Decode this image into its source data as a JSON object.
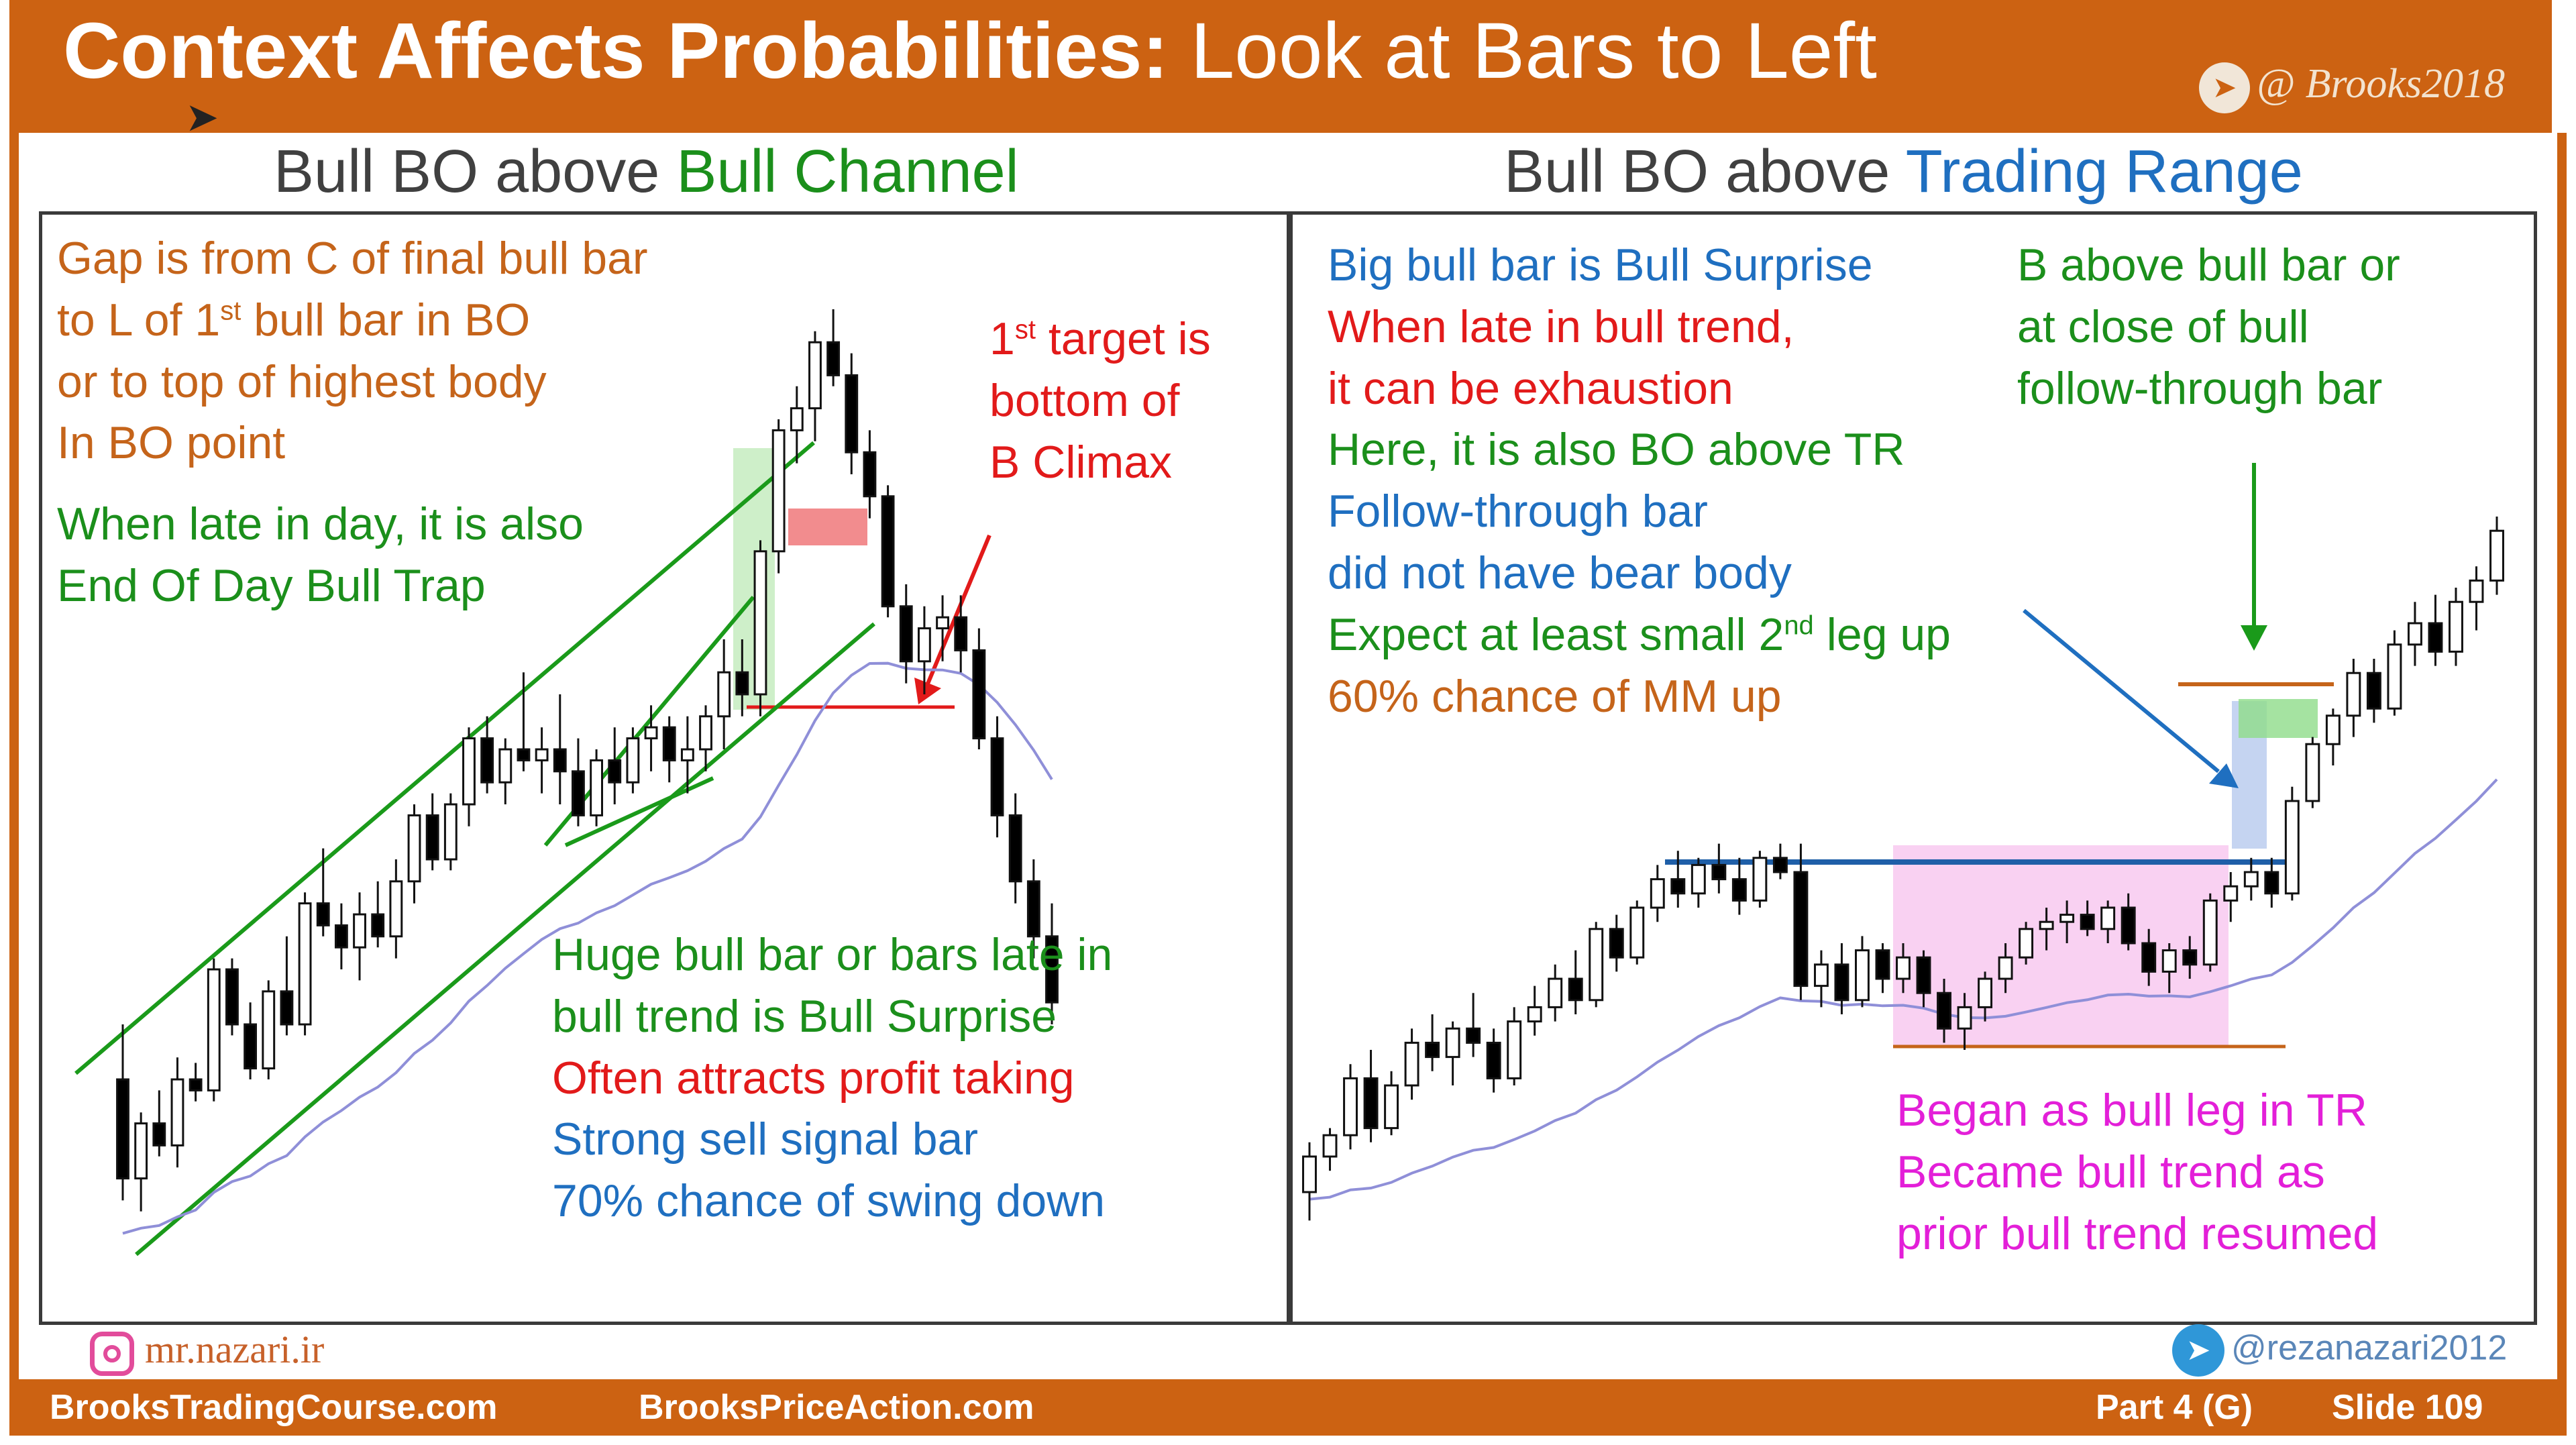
{
  "header": {
    "title_bold": "Context Affects Probabilities:",
    "title_rest": " Look at Bars to Left",
    "brand": "@ Brooks2018",
    "brand_icon": "telegram-icon"
  },
  "left_panel": {
    "title_prefix": "Bull BO above ",
    "title_highlight": "Bull Channel",
    "notes": {
      "gap_line1": "Gap is from C of final bull bar",
      "gap_line2_a": "to L of 1",
      "gap_line2_sup": "st",
      "gap_line2_b": " bull bar in BO",
      "gap_line3": "or to top of highest body",
      "gap_line4": "In BO point",
      "late_line1": "When late in day, it is also",
      "late_line2": "End Of Day Bull Trap",
      "target_line1_a": "1",
      "target_line1_sup": "st",
      "target_line1_b": " target is",
      "target_line2": "bottom of",
      "target_line3": "B Climax",
      "huge_line1": "Huge bull bar or bars late in",
      "huge_line2": "bull trend is Bull Surprise",
      "profit_line": "Often attracts profit taking",
      "sell_line1": "Strong sell signal bar",
      "sell_line2": "70% chance of swing down"
    }
  },
  "right_panel": {
    "title_prefix": "Bull BO above ",
    "title_highlight": "Trading Range",
    "notes": {
      "big_line1": "Big bull bar is Bull Surprise",
      "late_line1": "When late in bull trend,",
      "late_line2": "it can be exhaustion",
      "here_line": "Here, it is also BO above TR",
      "ft_line1": "Follow-through bar",
      "ft_line2": "did not have bear body",
      "expect_a": "Expect at least small 2",
      "expect_sup": "nd",
      "expect_b": " leg up",
      "mm_line": "60% chance of MM up",
      "b_line1": "B above bull bar or",
      "b_line2": "at close of bull",
      "b_line3": "follow-through bar",
      "began_line1": "Began as bull leg in TR",
      "began_line2": "Became bull trend as",
      "began_line3": "prior bull trend resumed"
    }
  },
  "credits": {
    "instagram": "mr.nazari.ir",
    "telegram": "@rezanazari2012"
  },
  "footer": {
    "site1": "BrooksTradingCourse.com",
    "site2": "BrooksPriceAction.com",
    "part": "Part 4 (G)",
    "slide": "Slide  109"
  },
  "colors": {
    "header": "#cc6212",
    "bull_candle": "#ffffff",
    "bear_candle": "#000000",
    "ema": "#8f8fd8",
    "channel": "#1a9a1a",
    "range_box": "#f7c6ef",
    "arrow_blue": "#1f6fc0",
    "arrow_red": "#e21a1a"
  },
  "chart_data": [
    {
      "type": "candlestick",
      "title": "Bull BO above Bull Channel",
      "candles": [
        [
          30,
          40,
          8,
          12
        ],
        [
          12,
          24,
          6,
          22
        ],
        [
          22,
          28,
          16,
          18
        ],
        [
          18,
          34,
          14,
          30
        ],
        [
          30,
          33,
          26,
          28
        ],
        [
          28,
          52,
          26,
          50
        ],
        [
          50,
          52,
          38,
          40
        ],
        [
          40,
          44,
          30,
          32
        ],
        [
          32,
          48,
          30,
          46
        ],
        [
          46,
          56,
          38,
          40
        ],
        [
          40,
          64,
          38,
          62
        ],
        [
          62,
          72,
          56,
          58
        ],
        [
          58,
          62,
          50,
          54
        ],
        [
          54,
          64,
          48,
          60
        ],
        [
          60,
          66,
          54,
          56
        ],
        [
          56,
          70,
          52,
          66
        ],
        [
          66,
          80,
          62,
          78
        ],
        [
          78,
          82,
          68,
          70
        ],
        [
          70,
          82,
          68,
          80
        ],
        [
          80,
          94,
          76,
          92
        ],
        [
          92,
          96,
          82,
          84
        ],
        [
          84,
          92,
          80,
          90
        ],
        [
          90,
          104,
          86,
          88
        ],
        [
          88,
          94,
          82,
          90
        ],
        [
          90,
          100,
          80,
          86
        ],
        [
          86,
          92,
          76,
          78
        ],
        [
          78,
          90,
          76,
          88
        ],
        [
          88,
          94,
          80,
          84
        ],
        [
          84,
          94,
          82,
          92
        ],
        [
          92,
          98,
          86,
          94
        ],
        [
          94,
          96,
          84,
          88
        ],
        [
          88,
          96,
          82,
          90
        ],
        [
          90,
          98,
          86,
          96
        ],
        [
          96,
          110,
          90,
          104
        ],
        [
          104,
          110,
          96,
          100
        ],
        [
          100,
          128,
          96,
          126
        ],
        [
          126,
          150,
          122,
          148
        ],
        [
          148,
          156,
          142,
          152
        ],
        [
          152,
          166,
          146,
          164
        ],
        [
          164,
          170,
          156,
          158
        ],
        [
          158,
          162,
          140,
          144
        ],
        [
          144,
          148,
          132,
          136
        ],
        [
          136,
          138,
          114,
          116
        ],
        [
          116,
          120,
          102,
          106
        ],
        [
          106,
          116,
          100,
          112
        ],
        [
          112,
          118,
          106,
          114
        ],
        [
          114,
          118,
          104,
          108
        ],
        [
          108,
          112,
          90,
          92
        ],
        [
          92,
          96,
          74,
          78
        ],
        [
          78,
          82,
          62,
          66
        ],
        [
          66,
          70,
          52,
          56
        ],
        [
          56,
          62,
          40,
          44
        ]
      ]
    },
    {
      "type": "candlestick",
      "title": "Bull BO above Trading Range",
      "candles": [
        [
          10,
          24,
          2,
          20
        ],
        [
          20,
          28,
          16,
          26
        ],
        [
          26,
          46,
          22,
          42
        ],
        [
          42,
          50,
          24,
          28
        ],
        [
          28,
          44,
          26,
          40
        ],
        [
          40,
          56,
          36,
          52
        ],
        [
          52,
          60,
          44,
          48
        ],
        [
          48,
          58,
          40,
          56
        ],
        [
          56,
          66,
          48,
          52
        ],
        [
          52,
          56,
          38,
          42
        ],
        [
          42,
          62,
          40,
          58
        ],
        [
          58,
          68,
          54,
          62
        ],
        [
          62,
          74,
          58,
          70
        ],
        [
          70,
          78,
          60,
          64
        ],
        [
          64,
          86,
          62,
          84
        ],
        [
          84,
          88,
          72,
          76
        ],
        [
          76,
          92,
          74,
          90
        ],
        [
          90,
          102,
          86,
          98
        ],
        [
          98,
          106,
          90,
          94
        ],
        [
          94,
          104,
          90,
          102
        ],
        [
          102,
          108,
          94,
          98
        ],
        [
          98,
          104,
          88,
          92
        ],
        [
          92,
          106,
          90,
          104
        ],
        [
          104,
          108,
          98,
          100
        ],
        [
          100,
          108,
          64,
          68
        ],
        [
          68,
          78,
          62,
          74
        ],
        [
          74,
          80,
          60,
          64
        ],
        [
          64,
          82,
          62,
          78
        ],
        [
          78,
          80,
          66,
          70
        ],
        [
          70,
          80,
          66,
          76
        ],
        [
          76,
          78,
          62,
          66
        ],
        [
          66,
          70,
          52,
          56
        ],
        [
          56,
          66,
          50,
          62
        ],
        [
          62,
          72,
          58,
          70
        ],
        [
          70,
          80,
          66,
          76
        ],
        [
          76,
          86,
          74,
          84
        ],
        [
          84,
          90,
          78,
          86
        ],
        [
          86,
          92,
          80,
          88
        ],
        [
          88,
          92,
          82,
          84
        ],
        [
          84,
          92,
          80,
          90
        ],
        [
          90,
          94,
          78,
          80
        ],
        [
          80,
          84,
          68,
          72
        ],
        [
          72,
          80,
          66,
          78
        ],
        [
          78,
          82,
          70,
          74
        ],
        [
          74,
          94,
          72,
          92
        ],
        [
          92,
          100,
          86,
          96
        ],
        [
          96,
          104,
          92,
          100
        ],
        [
          100,
          104,
          90,
          94
        ],
        [
          94,
          124,
          92,
          120
        ],
        [
          120,
          138,
          118,
          136
        ],
        [
          136,
          146,
          130,
          144
        ],
        [
          144,
          160,
          138,
          156
        ],
        [
          156,
          160,
          142,
          146
        ],
        [
          146,
          168,
          144,
          164
        ],
        [
          164,
          176,
          158,
          170
        ],
        [
          170,
          178,
          158,
          162
        ],
        [
          162,
          180,
          158,
          176
        ],
        [
          176,
          186,
          168,
          182
        ],
        [
          182,
          200,
          178,
          196
        ]
      ]
    }
  ]
}
